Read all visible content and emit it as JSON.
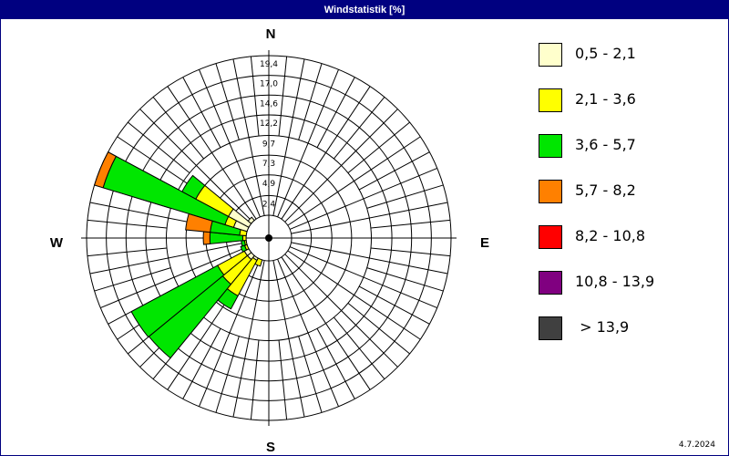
{
  "window": {
    "title": "Windstatistik [%]",
    "date": "4.7.2024"
  },
  "chart_data": {
    "type": "windrose",
    "title": "Windstatistik [%]",
    "unit": "%",
    "sectors": 32,
    "compass_labels": {
      "N": "N",
      "E": "E",
      "S": "S",
      "W": "W"
    },
    "ring_labels": [
      "2,4",
      "4,9",
      "7,3",
      "9,7",
      "12,2",
      "14,6",
      "17,0",
      "19,4"
    ],
    "ring_values": [
      2.4,
      4.9,
      7.3,
      9.7,
      12.2,
      14.6,
      17.0,
      19.4
    ],
    "rmax": 19.4,
    "classes": [
      {
        "label": "0,5 - 2,1",
        "color": "#FFFFCC"
      },
      {
        "label": "2,1 - 3,6",
        "color": "#FFFF00"
      },
      {
        "label": "3,6 - 5,7",
        "color": "#00E600"
      },
      {
        "label": "5,7 - 8,2",
        "color": "#FF8000"
      },
      {
        "label": "8,2 - 10,8",
        "color": "#FF0000"
      },
      {
        "label": "10,8 - 13,9",
        "color": "#800080"
      },
      {
        "label": " > 13,9",
        "color": "#404040"
      }
    ],
    "directions": [
      {
        "bearing": 202.5,
        "values": [
          0.0,
          0.8,
          0.0,
          0.0,
          0,
          0,
          0
        ]
      },
      {
        "bearing": 213.75,
        "values": [
          0.3,
          4.9,
          1.8,
          0.0,
          0,
          0,
          0
        ]
      },
      {
        "bearing": 225.0,
        "values": [
          0.6,
          3.9,
          11.6,
          0.0,
          0,
          0,
          0
        ]
      },
      {
        "bearing": 236.25,
        "values": [
          0.6,
          3.7,
          11.9,
          0.0,
          0,
          0,
          0
        ]
      },
      {
        "bearing": 247.5,
        "values": [
          0.0,
          0.3,
          0.5,
          0.0,
          0,
          0,
          0
        ]
      },
      {
        "bearing": 258.75,
        "values": [
          0.0,
          0.2,
          0.4,
          0.0,
          0,
          0,
          0
        ]
      },
      {
        "bearing": 270.0,
        "values": [
          0.0,
          0.4,
          4.0,
          0.8,
          0,
          0,
          0
        ]
      },
      {
        "bearing": 281.25,
        "values": [
          0.0,
          0.8,
          3.6,
          3.0,
          0,
          0,
          0
        ]
      },
      {
        "bearing": 292.5,
        "values": [
          1.7,
          1.1,
          15.5,
          1.1,
          0,
          0,
          0
        ]
      },
      {
        "bearing": 303.75,
        "values": [
          2.8,
          4.5,
          1.9,
          0.0,
          0,
          0,
          0
        ]
      },
      {
        "bearing": 315.0,
        "values": [
          0.5,
          0.0,
          0.0,
          0.0,
          0,
          0,
          0
        ]
      }
    ],
    "grid": true,
    "legend_position": "right"
  }
}
